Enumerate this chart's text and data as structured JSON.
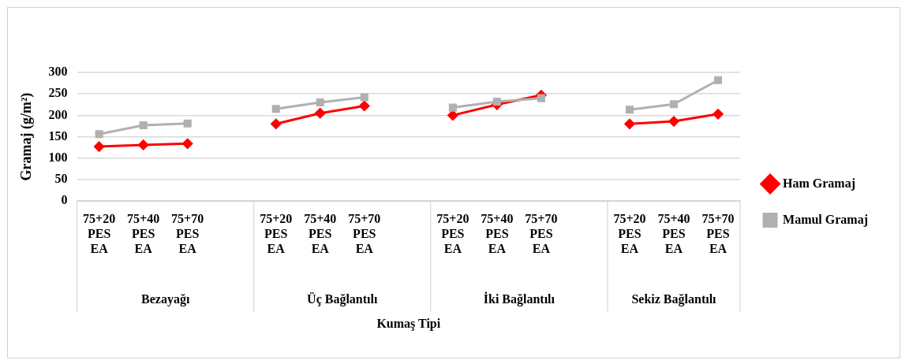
{
  "chart_data": {
    "type": "line",
    "xlabel": "Kumaş Tipi",
    "ylabel": "Gramaj (g/m²)",
    "categories": [
      "75+20 PES EA",
      "75+40 PES EA",
      "75+70 PES EA",
      null,
      "75+20 PES EA",
      "75+40 PES EA",
      "75+70 PES EA",
      null,
      "75+20 PES EA",
      "75+40 PES EA",
      "75+70 PES EA",
      null,
      "75+20 PES EA",
      "75+40 PES EA",
      "75+70 PES EA"
    ],
    "series": [
      {
        "name": "Ham Gramaj",
        "color": "#ff0000",
        "marker": "diamond",
        "values": [
          127,
          131,
          134,
          null,
          180,
          205,
          222,
          null,
          200,
          225,
          247,
          null,
          180,
          186,
          203
        ]
      },
      {
        "name": "Mamul Gramaj",
        "color": "#b0b0b0",
        "marker": "square",
        "values": [
          156,
          177,
          181,
          null,
          215,
          230,
          242,
          null,
          218,
          232,
          240,
          null,
          213,
          226,
          282
        ]
      }
    ],
    "annotations": [
      "Bezayağı",
      "Üç Bağlantılı",
      "İki Bağlantılı",
      "Sekiz Bağlantılı"
    ],
    "ylim": [
      0,
      300
    ],
    "yticks": [
      0,
      50,
      100,
      150,
      200,
      250,
      300
    ],
    "grid": "y",
    "legend": "right",
    "line_style": "solid"
  }
}
